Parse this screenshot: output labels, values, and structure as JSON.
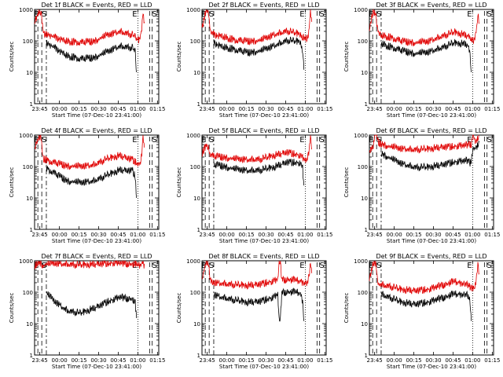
{
  "chart_data": {
    "type": "line",
    "layout": "3x3 grid of small multiples",
    "scale": "log-y",
    "ylim": [
      1,
      1000
    ],
    "y_ticks": [
      "1",
      "10",
      "100",
      "1000"
    ],
    "x_ticks": [
      "23:45",
      "00:00",
      "00:15",
      "00:30",
      "00:45",
      "01:00",
      "01:15"
    ],
    "xlabel": "Start Time (07-Dec-10 23:41:00)",
    "ylabel": "Counts/sec",
    "colors": {
      "events": "#000000",
      "lld": "#e00000"
    },
    "panels": [
      {
        "title": "Det 1f BLACK = Events, RED = LLD",
        "markers": [
          "E",
          "S",
          "E",
          "S"
        ],
        "red": {
          "x": [
            0,
            3,
            5,
            6,
            7,
            9,
            15,
            25,
            35,
            45,
            55,
            65,
            75,
            78,
            80,
            81,
            82,
            83,
            84
          ],
          "y": [
            400,
            1000,
            900,
            350,
            200,
            180,
            150,
            110,
            100,
            110,
            170,
            230,
            180,
            140,
            120,
            160,
            300,
            1000,
            400
          ]
        },
        "black": {
          "x": [
            9,
            15,
            25,
            35,
            45,
            55,
            65,
            75,
            77,
            78
          ],
          "y": [
            95,
            70,
            38,
            30,
            33,
            50,
            78,
            70,
            50,
            10
          ]
        }
      },
      {
        "title": "Det 2f BLACK = Events, RED = LLD",
        "markers": [
          "E",
          "S",
          "E",
          "S"
        ],
        "red": {
          "x": [
            0,
            3,
            5,
            6,
            7,
            9,
            15,
            25,
            35,
            45,
            55,
            65,
            75,
            78,
            80,
            81,
            82,
            83,
            84
          ],
          "y": [
            300,
            1000,
            900,
            300,
            200,
            180,
            160,
            120,
            110,
            120,
            180,
            240,
            190,
            140,
            130,
            160,
            300,
            1000,
            400
          ]
        },
        "black": {
          "x": [
            9,
            15,
            25,
            35,
            45,
            55,
            65,
            75,
            77,
            78
          ],
          "y": [
            100,
            75,
            60,
            48,
            55,
            80,
            120,
            110,
            60,
            12
          ]
        }
      },
      {
        "title": "Det 3f BLACK = Events, RED = LLD",
        "markers": [
          "E",
          "S",
          "E",
          "S"
        ],
        "red": {
          "x": [
            0,
            3,
            5,
            6,
            7,
            9,
            15,
            25,
            35,
            45,
            55,
            65,
            75,
            78,
            80,
            81,
            82,
            83,
            84
          ],
          "y": [
            250,
            1000,
            800,
            300,
            200,
            170,
            150,
            110,
            100,
            110,
            160,
            220,
            170,
            130,
            120,
            150,
            250,
            900,
            350
          ]
        },
        "black": {
          "x": [
            9,
            15,
            25,
            35,
            45,
            55,
            65,
            75,
            77,
            78
          ],
          "y": [
            95,
            75,
            55,
            45,
            50,
            70,
            100,
            90,
            45,
            10
          ]
        }
      },
      {
        "title": "Det 4f BLACK = Events, RED = LLD",
        "markers": [
          "E",
          "S",
          "E",
          "S"
        ],
        "red": {
          "x": [
            0,
            3,
            5,
            6,
            7,
            9,
            15,
            25,
            35,
            45,
            55,
            65,
            75,
            78,
            80,
            81,
            82,
            83,
            84
          ],
          "y": [
            400,
            1000,
            900,
            350,
            200,
            180,
            150,
            120,
            115,
            130,
            200,
            260,
            190,
            150,
            130,
            170,
            300,
            1000,
            400
          ]
        },
        "black": {
          "x": [
            9,
            15,
            25,
            35,
            45,
            55,
            65,
            75,
            77,
            78
          ],
          "y": [
            100,
            70,
            40,
            35,
            40,
            60,
            90,
            85,
            55,
            10
          ]
        }
      },
      {
        "title": "Det 5f BLACK = Events, RED = LLD",
        "markers": [
          "E",
          "S",
          "E",
          "S"
        ],
        "red": {
          "x": [
            0,
            3,
            5,
            6,
            7,
            9,
            15,
            25,
            35,
            45,
            55,
            65,
            75,
            78,
            80,
            81,
            82,
            83,
            84
          ],
          "y": [
            300,
            500,
            500,
            300,
            250,
            240,
            230,
            200,
            190,
            200,
            260,
            330,
            260,
            200,
            180,
            220,
            400,
            1000,
            350
          ]
        },
        "black": {
          "x": [
            9,
            15,
            25,
            35,
            45,
            55,
            65,
            75,
            77,
            78
          ],
          "y": [
            130,
            120,
            95,
            85,
            90,
            110,
            160,
            150,
            100,
            25
          ]
        }
      },
      {
        "title": "Det 6f BLACK = Events, RED = LLD",
        "markers": [
          "E",
          "S",
          "E",
          "S"
        ],
        "red": {
          "x": [
            0,
            3,
            4,
            5,
            6,
            7,
            9,
            15,
            25,
            35,
            45,
            55,
            65,
            75,
            78,
            79,
            80,
            81,
            82,
            84
          ],
          "y": [
            300,
            500,
            1200,
            1400,
            900,
            650,
            600,
            500,
            420,
            400,
            420,
            480,
            500,
            560,
            600,
            1400,
            1000,
            700,
            800,
            1000
          ]
        },
        "black": {
          "x": [
            9,
            15,
            25,
            35,
            45,
            55,
            65,
            75,
            77,
            78,
            79,
            82,
            84
          ],
          "y": [
            300,
            220,
            140,
            110,
            110,
            130,
            160,
            180,
            150,
            200,
            400,
            500,
            600
          ]
        }
      },
      {
        "title": "Det 7f BLACK = Events, RED = LLD",
        "markers": [
          "E",
          "S",
          "E",
          "S"
        ],
        "red": {
          "x": [
            0,
            3,
            5,
            6,
            7,
            9,
            15,
            25,
            35,
            45,
            55,
            65,
            75,
            78,
            80,
            81,
            82,
            83,
            84
          ],
          "y": [
            800,
            1000,
            950,
            850,
            800,
            900,
            950,
            900,
            850,
            900,
            950,
            1000,
            900,
            850,
            800,
            900,
            950,
            1000,
            800
          ]
        },
        "black": {
          "x": [
            9,
            15,
            25,
            35,
            45,
            55,
            65,
            75,
            77,
            78
          ],
          "y": [
            110,
            60,
            30,
            25,
            35,
            55,
            80,
            70,
            50,
            15
          ]
        }
      },
      {
        "title": "Det 8f BLACK = Events, RED = LLD",
        "markers": [
          "E",
          "S",
          "E",
          "S"
        ],
        "red": {
          "x": [
            0,
            3,
            5,
            6,
            7,
            9,
            15,
            25,
            35,
            45,
            55,
            58,
            59,
            60,
            61,
            62,
            65,
            75,
            78,
            80,
            81,
            82,
            83,
            84
          ],
          "y": [
            300,
            1000,
            900,
            300,
            250,
            230,
            220,
            200,
            190,
            210,
            260,
            300,
            1000,
            1000,
            300,
            280,
            300,
            260,
            230,
            220,
            250,
            400,
            1000,
            400
          ]
        },
        "black": {
          "x": [
            9,
            15,
            25,
            35,
            45,
            55,
            58,
            59,
            60,
            61,
            65,
            75,
            77,
            78
          ],
          "y": [
            95,
            80,
            65,
            55,
            60,
            80,
            100,
            15,
            15,
            110,
            120,
            110,
            60,
            12
          ]
        }
      },
      {
        "title": "Det 9f BLACK = Events, RED = LLD",
        "markers": [
          "E",
          "S",
          "E",
          "S"
        ],
        "red": {
          "x": [
            0,
            3,
            5,
            6,
            7,
            9,
            15,
            25,
            35,
            45,
            55,
            65,
            75,
            78,
            80,
            81,
            82,
            83,
            84
          ],
          "y": [
            300,
            1000,
            900,
            300,
            220,
            200,
            180,
            140,
            130,
            140,
            190,
            250,
            200,
            160,
            150,
            190,
            350,
            1000,
            400
          ]
        },
        "black": {
          "x": [
            9,
            15,
            25,
            35,
            45,
            55,
            65,
            75,
            77,
            78
          ],
          "y": [
            100,
            80,
            55,
            48,
            55,
            75,
            100,
            95,
            60,
            12
          ]
        }
      }
    ]
  }
}
